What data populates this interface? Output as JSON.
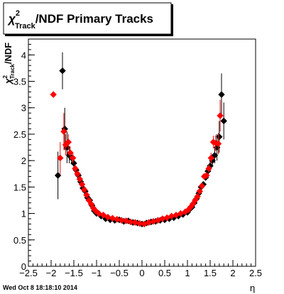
{
  "chart_data": {
    "type": "scatter",
    "title": {
      "chi": "χ",
      "superscript": "2",
      "subscript": "Track",
      "rest": "/NDF  Primary Tracks"
    },
    "xlabel": "η",
    "ylabel": {
      "chi": "χ",
      "superscript": "2",
      "subscript": "Track",
      "rest": "/NDF"
    },
    "xlim": [
      -2.5,
      2.5
    ],
    "ylim": [
      0,
      4.3
    ],
    "xticks": [
      "−2.5",
      "−2",
      "−1.5",
      "−1",
      "−0.5",
      "0",
      "0.5",
      "1",
      "1.5",
      "2",
      "2.5"
    ],
    "xtick_values": [
      -2.5,
      -2,
      -1.5,
      -1,
      -0.5,
      0,
      0.5,
      1,
      1.5,
      2,
      2.5
    ],
    "yticks": [
      "0",
      "0.5",
      "1",
      "1.5",
      "2",
      "2.5",
      "3",
      "3.5",
      "4"
    ],
    "ytick_values": [
      0,
      0.5,
      1,
      1.5,
      2,
      2.5,
      3,
      3.5,
      4
    ],
    "grid": false,
    "colors": {
      "series_black": "#000000",
      "series_red": "#ff0000"
    },
    "series": [
      {
        "color": "#000000",
        "points": [
          {
            "x": -1.85,
            "y": 1.72,
            "err": 0.45
          },
          {
            "x": -1.75,
            "y": 3.7,
            "err": 0.35
          },
          {
            "x": -1.7,
            "y": 2.6,
            "err": 0.4
          },
          {
            "x": -1.65,
            "y": 2.25,
            "err": 0.3
          },
          {
            "x": -1.6,
            "y": 2.1,
            "err": 0.15
          },
          {
            "x": -1.55,
            "y": 2.05,
            "err": 0.12
          },
          {
            "x": -1.5,
            "y": 1.95,
            "err": 0.1
          },
          {
            "x": -1.45,
            "y": 1.82,
            "err": 0.08
          },
          {
            "x": -1.4,
            "y": 1.72,
            "err": 0.06
          },
          {
            "x": -1.35,
            "y": 1.6,
            "err": 0.05
          },
          {
            "x": -1.3,
            "y": 1.48,
            "err": 0.05
          },
          {
            "x": -1.25,
            "y": 1.42,
            "err": 0.04
          },
          {
            "x": -1.2,
            "y": 1.3,
            "err": 0.04
          },
          {
            "x": -1.15,
            "y": 1.25,
            "err": 0.03
          },
          {
            "x": -1.1,
            "y": 1.15,
            "err": 0.03
          },
          {
            "x": -1.05,
            "y": 1.05,
            "err": 0.02
          },
          {
            "x": -1.0,
            "y": 1.0,
            "err": 0.02
          },
          {
            "x": -0.9,
            "y": 0.95,
            "err": 0.02
          },
          {
            "x": -0.8,
            "y": 0.9,
            "err": 0.02
          },
          {
            "x": -0.7,
            "y": 0.88,
            "err": 0.02
          },
          {
            "x": -0.6,
            "y": 0.87,
            "err": 0.02
          },
          {
            "x": -0.5,
            "y": 0.88,
            "err": 0.02
          },
          {
            "x": -0.4,
            "y": 0.85,
            "err": 0.02
          },
          {
            "x": -0.3,
            "y": 0.86,
            "err": 0.02
          },
          {
            "x": -0.2,
            "y": 0.83,
            "err": 0.02
          },
          {
            "x": -0.1,
            "y": 0.82,
            "err": 0.02
          },
          {
            "x": 0.0,
            "y": 0.8,
            "err": 0.02
          },
          {
            "x": 0.1,
            "y": 0.82,
            "err": 0.02
          },
          {
            "x": 0.2,
            "y": 0.84,
            "err": 0.02
          },
          {
            "x": 0.3,
            "y": 0.85,
            "err": 0.02
          },
          {
            "x": 0.4,
            "y": 0.87,
            "err": 0.02
          },
          {
            "x": 0.5,
            "y": 0.88,
            "err": 0.02
          },
          {
            "x": 0.6,
            "y": 0.9,
            "err": 0.02
          },
          {
            "x": 0.7,
            "y": 0.92,
            "err": 0.02
          },
          {
            "x": 0.8,
            "y": 0.95,
            "err": 0.02
          },
          {
            "x": 0.9,
            "y": 0.98,
            "err": 0.02
          },
          {
            "x": 1.0,
            "y": 1.02,
            "err": 0.02
          },
          {
            "x": 1.05,
            "y": 1.08,
            "err": 0.03
          },
          {
            "x": 1.1,
            "y": 1.12,
            "err": 0.03
          },
          {
            "x": 1.15,
            "y": 1.2,
            "err": 0.03
          },
          {
            "x": 1.2,
            "y": 1.28,
            "err": 0.04
          },
          {
            "x": 1.25,
            "y": 1.38,
            "err": 0.04
          },
          {
            "x": 1.3,
            "y": 1.5,
            "err": 0.05
          },
          {
            "x": 1.35,
            "y": 1.55,
            "err": 0.05
          },
          {
            "x": 1.4,
            "y": 1.68,
            "err": 0.06
          },
          {
            "x": 1.45,
            "y": 1.8,
            "err": 0.08
          },
          {
            "x": 1.5,
            "y": 1.9,
            "err": 0.1
          },
          {
            "x": 1.55,
            "y": 2.0,
            "err": 0.12
          },
          {
            "x": 1.6,
            "y": 2.1,
            "err": 0.15
          },
          {
            "x": 1.65,
            "y": 2.25,
            "err": 0.25
          },
          {
            "x": 1.7,
            "y": 2.45,
            "err": 0.3
          },
          {
            "x": 1.75,
            "y": 3.25,
            "err": 0.4
          },
          {
            "x": 1.8,
            "y": 2.75,
            "err": 0.35
          }
        ]
      },
      {
        "color": "#ff0000",
        "points": [
          {
            "x": -1.95,
            "y": 3.25,
            "err": 0
          },
          {
            "x": -1.8,
            "y": 2.05,
            "err": 0.3
          },
          {
            "x": -1.72,
            "y": 2.55,
            "err": 0.35
          },
          {
            "x": -1.68,
            "y": 2.3,
            "err": 0.2
          },
          {
            "x": -1.62,
            "y": 2.35,
            "err": 0.15
          },
          {
            "x": -1.58,
            "y": 2.15,
            "err": 0.12
          },
          {
            "x": -1.52,
            "y": 2.05,
            "err": 0.1
          },
          {
            "x": -1.47,
            "y": 1.85,
            "err": 0.08
          },
          {
            "x": -1.42,
            "y": 1.75,
            "err": 0.06
          },
          {
            "x": -1.37,
            "y": 1.65,
            "err": 0.05
          },
          {
            "x": -1.32,
            "y": 1.55,
            "err": 0.05
          },
          {
            "x": -1.27,
            "y": 1.45,
            "err": 0.04
          },
          {
            "x": -1.22,
            "y": 1.35,
            "err": 0.04
          },
          {
            "x": -1.17,
            "y": 1.25,
            "err": 0.03
          },
          {
            "x": -1.12,
            "y": 1.18,
            "err": 0.03
          },
          {
            "x": -1.07,
            "y": 1.1,
            "err": 0.02
          },
          {
            "x": -1.02,
            "y": 1.05,
            "err": 0.02
          },
          {
            "x": -0.95,
            "y": 1.0,
            "err": 0.02
          },
          {
            "x": -0.85,
            "y": 0.97,
            "err": 0.02
          },
          {
            "x": -0.75,
            "y": 0.93,
            "err": 0.02
          },
          {
            "x": -0.65,
            "y": 0.91,
            "err": 0.02
          },
          {
            "x": -0.55,
            "y": 0.89,
            "err": 0.02
          },
          {
            "x": -0.45,
            "y": 0.87,
            "err": 0.02
          },
          {
            "x": -0.35,
            "y": 0.86,
            "err": 0.02
          },
          {
            "x": -0.25,
            "y": 0.84,
            "err": 0.02
          },
          {
            "x": -0.15,
            "y": 0.83,
            "err": 0.02
          },
          {
            "x": -0.05,
            "y": 0.81,
            "err": 0.02
          },
          {
            "x": 0.05,
            "y": 0.8,
            "err": 0.02
          },
          {
            "x": 0.15,
            "y": 0.83,
            "err": 0.02
          },
          {
            "x": 0.25,
            "y": 0.85,
            "err": 0.02
          },
          {
            "x": 0.35,
            "y": 0.87,
            "err": 0.02
          },
          {
            "x": 0.45,
            "y": 0.9,
            "err": 0.02
          },
          {
            "x": 0.55,
            "y": 0.92,
            "err": 0.02
          },
          {
            "x": 0.65,
            "y": 0.95,
            "err": 0.02
          },
          {
            "x": 0.75,
            "y": 0.97,
            "err": 0.02
          },
          {
            "x": 0.85,
            "y": 1.0,
            "err": 0.02
          },
          {
            "x": 0.95,
            "y": 1.03,
            "err": 0.02
          },
          {
            "x": 1.02,
            "y": 1.07,
            "err": 0.02
          },
          {
            "x": 1.07,
            "y": 1.12,
            "err": 0.03
          },
          {
            "x": 1.12,
            "y": 1.18,
            "err": 0.03
          },
          {
            "x": 1.17,
            "y": 1.25,
            "err": 0.03
          },
          {
            "x": 1.22,
            "y": 1.32,
            "err": 0.04
          },
          {
            "x": 1.27,
            "y": 1.42,
            "err": 0.04
          },
          {
            "x": 1.32,
            "y": 1.52,
            "err": 0.05
          },
          {
            "x": 1.37,
            "y": 1.7,
            "err": 0.05
          },
          {
            "x": 1.42,
            "y": 1.72,
            "err": 0.06
          },
          {
            "x": 1.47,
            "y": 1.85,
            "err": 0.08
          },
          {
            "x": 1.52,
            "y": 2.05,
            "err": 0.1
          },
          {
            "x": 1.57,
            "y": 2.35,
            "err": 0.12
          },
          {
            "x": 1.62,
            "y": 2.33,
            "err": 0.15
          },
          {
            "x": 1.68,
            "y": 2.32,
            "err": 0.2
          },
          {
            "x": 1.72,
            "y": 2.85,
            "err": 0.3
          }
        ]
      }
    ]
  },
  "footer": {
    "timestamp": "Wed Oct  8 18:18:10 2014"
  }
}
